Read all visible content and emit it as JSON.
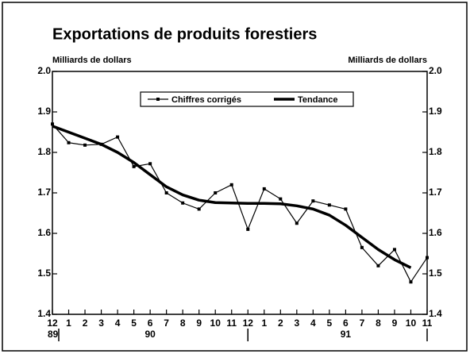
{
  "chart_data": {
    "type": "line",
    "title": "Exportations de produits forestiers",
    "y_label": "Milliards de dollars",
    "y2_label": "Milliards de dollars",
    "categories": [
      "12",
      "1",
      "2",
      "3",
      "4",
      "5",
      "6",
      "7",
      "8",
      "9",
      "10",
      "11",
      "12",
      "1",
      "2",
      "3",
      "4",
      "5",
      "6",
      "7",
      "8",
      "9",
      "10",
      "11"
    ],
    "year_labels": [
      "89",
      "90",
      "91"
    ],
    "series": [
      {
        "name": "Chiffres corrigés",
        "color": "#000000",
        "marker": "square",
        "values": [
          1.87,
          1.824,
          1.818,
          1.82,
          1.838,
          1.765,
          1.772,
          1.7,
          1.675,
          1.66,
          1.7,
          1.72,
          1.61,
          1.71,
          1.685,
          1.625,
          1.68,
          1.67,
          1.66,
          1.565,
          1.52,
          1.56,
          1.48,
          1.54
        ]
      },
      {
        "name": "Tendance",
        "color": "#000000",
        "values": [
          1.865,
          1.85,
          1.835,
          1.82,
          1.8,
          1.775,
          1.745,
          1.715,
          1.695,
          1.682,
          1.676,
          1.675,
          1.674,
          1.674,
          1.673,
          1.668,
          1.66,
          1.645,
          1.62,
          1.59,
          1.56,
          1.535,
          1.515,
          null
        ]
      }
    ],
    "ylim": [
      1.4,
      2.0
    ],
    "yticks": [
      1.4,
      1.5,
      1.6,
      1.7,
      1.8,
      1.9,
      {
        "value": 2.0,
        "label": "2.0"
      }
    ],
    "y2lim": [
      1.4,
      2.0
    ],
    "y2ticks": [
      1.4,
      1.5,
      1.6,
      1.7,
      1.8,
      1.9,
      {
        "value": 2.0,
        "label": "2.0"
      }
    ],
    "legend": "top"
  }
}
